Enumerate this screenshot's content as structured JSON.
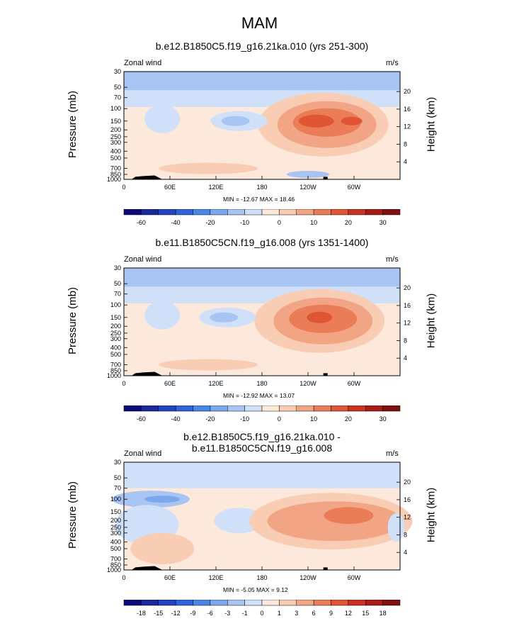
{
  "figure": {
    "title": "MAM"
  },
  "palettes": {
    "full": [
      "#0c0a78",
      "#1a2a9e",
      "#2244c2",
      "#2e63d9",
      "#4a86e6",
      "#7aa7ee",
      "#a7c4f2",
      "#cfe0f8",
      "#fde9dc",
      "#f9cdb3",
      "#f2a585",
      "#eb7c58",
      "#e05533",
      "#c93322",
      "#a81b16",
      "#801010"
    ],
    "diff": [
      "#0c0a78",
      "#1a2a9e",
      "#2244c2",
      "#2e63d9",
      "#4a86e6",
      "#7aa7ee",
      "#a7c4f2",
      "#cfe0f8",
      "#fde9dc",
      "#f9cdb3",
      "#f2a585",
      "#eb7c58",
      "#e05533",
      "#c93322",
      "#a81b16",
      "#801010"
    ]
  },
  "panels": [
    {
      "subtitle": "b.e12.B1850C5.f19_g16.21ka.010 (yrs 251-300)",
      "left_label": "Zonal wind",
      "right_label": "m/s",
      "y_title": "Pressure (mb)",
      "y2_title": "Height (km)",
      "min_max": "MIN = -12.67  MAX =  18.46",
      "colorbar_labels": [
        "-60",
        "-40",
        "-20",
        "-10",
        "0",
        "10",
        "20",
        "30"
      ]
    },
    {
      "subtitle": "b.e11.B1850C5CN.f19_g16.008 (yrs 1351-1400)",
      "left_label": "Zonal wind",
      "right_label": "m/s",
      "y_title": "Pressure (mb)",
      "y2_title": "Height (km)",
      "min_max": "MIN = -12.92  MAX =  13.07",
      "colorbar_labels": [
        "-60",
        "-40",
        "-20",
        "-10",
        "0",
        "10",
        "20",
        "30"
      ]
    },
    {
      "subtitle": "b.e12.B1850C5.f19_g16.21ka.010 - b.e11.B1850C5CN.f19_g16.008",
      "left_label": "Zonal wind",
      "right_label": "m/s",
      "y_title": "Pressure (mb)",
      "y2_title": "Height (km)",
      "min_max": "MIN = -5.05  MAX =  9.12",
      "colorbar_labels": [
        "-18",
        "-15",
        "-12",
        "-9",
        "-6",
        "-3",
        "-1",
        "0",
        "1",
        "3",
        "6",
        "9",
        "12",
        "15",
        "18"
      ]
    }
  ],
  "chart_data": [
    {
      "type": "heatmap",
      "title": "b.e12.B1850C5.f19_g16.21ka.010 (yrs 251-300)",
      "field": "Zonal wind",
      "units": "m/s",
      "x_ticks": [
        "0",
        "60E",
        "120E",
        "180",
        "120W",
        "60W"
      ],
      "x_range": [
        0,
        360
      ],
      "y_ticks_left": [
        "30",
        "50",
        "70",
        "100",
        "150",
        "200",
        "250",
        "300",
        "400",
        "500",
        "700",
        "850",
        "1000"
      ],
      "y_ticks_right": [
        "20",
        "16",
        "12",
        "8",
        "4"
      ],
      "ylim": [
        1000,
        30
      ],
      "min": -12.67,
      "max": 18.46,
      "levels": [
        -70,
        -60,
        -50,
        -40,
        -30,
        -20,
        -15,
        -10,
        -5,
        0,
        5,
        10,
        15,
        20,
        25,
        30,
        35
      ],
      "colorbar_ticks": [
        -60,
        -40,
        -20,
        -10,
        0,
        10,
        20,
        30
      ],
      "features": [
        {
          "kind": "jet",
          "lon": 260,
          "p": 160,
          "peak": 18.46
        },
        {
          "kind": "easterly",
          "lon": 150,
          "p": 150,
          "value": -7
        },
        {
          "kind": "easterly",
          "lon": 240,
          "p": 850,
          "value": -6
        },
        {
          "kind": "strat_easterly",
          "p": 50,
          "value": -10
        }
      ]
    },
    {
      "type": "heatmap",
      "title": "b.e11.B1850C5CN.f19_g16.008 (yrs 1351-1400)",
      "field": "Zonal wind",
      "units": "m/s",
      "x_ticks": [
        "0",
        "60E",
        "120E",
        "180",
        "120W",
        "60W"
      ],
      "x_range": [
        0,
        360
      ],
      "y_ticks_left": [
        "30",
        "50",
        "70",
        "100",
        "150",
        "200",
        "250",
        "300",
        "400",
        "500",
        "700",
        "850",
        "1000"
      ],
      "y_ticks_right": [
        "20",
        "16",
        "12",
        "8",
        "4"
      ],
      "ylim": [
        1000,
        30
      ],
      "min": -12.92,
      "max": 13.07,
      "levels": [
        -70,
        -60,
        -50,
        -40,
        -30,
        -20,
        -15,
        -10,
        -5,
        0,
        5,
        10,
        15,
        20,
        25,
        30,
        35
      ],
      "colorbar_ticks": [
        -60,
        -40,
        -20,
        -10,
        0,
        10,
        20,
        30
      ],
      "features": [
        {
          "kind": "jet",
          "lon": 255,
          "p": 150,
          "peak": 13.07
        },
        {
          "kind": "easterly",
          "lon": 135,
          "p": 150,
          "value": -8
        },
        {
          "kind": "strat_easterly",
          "p": 50,
          "value": -8
        }
      ]
    },
    {
      "type": "heatmap",
      "title": "b.e12.B1850C5.f19_g16.21ka.010 - b.e11.B1850C5CN.f19_g16.008",
      "field": "Zonal wind",
      "units": "m/s",
      "x_ticks": [
        "0",
        "60E",
        "120E",
        "180",
        "120W",
        "60W"
      ],
      "x_range": [
        0,
        360
      ],
      "y_ticks_left": [
        "30",
        "50",
        "70",
        "100",
        "150",
        "200",
        "250",
        "300",
        "400",
        "500",
        "700",
        "850",
        "1000"
      ],
      "y_ticks_right": [
        "20",
        "16",
        "12",
        "8",
        "4"
      ],
      "ylim": [
        1000,
        30
      ],
      "min": -5.05,
      "max": 9.12,
      "levels": [
        -21,
        -18,
        -15,
        -12,
        -9,
        -6,
        -3,
        -1,
        0,
        1,
        3,
        6,
        9,
        12,
        15,
        18,
        21
      ],
      "colorbar_ticks": [
        -18,
        -15,
        -12,
        -9,
        -6,
        -3,
        -1,
        0,
        1,
        3,
        6,
        9,
        12,
        15,
        18
      ],
      "features": [
        {
          "kind": "positive",
          "lon": 270,
          "p": 160,
          "peak": 9.12
        },
        {
          "kind": "negative",
          "lon": 50,
          "p": 100,
          "value": -5
        },
        {
          "kind": "positive",
          "lon": 50,
          "p": 450,
          "value": 2
        }
      ]
    }
  ]
}
